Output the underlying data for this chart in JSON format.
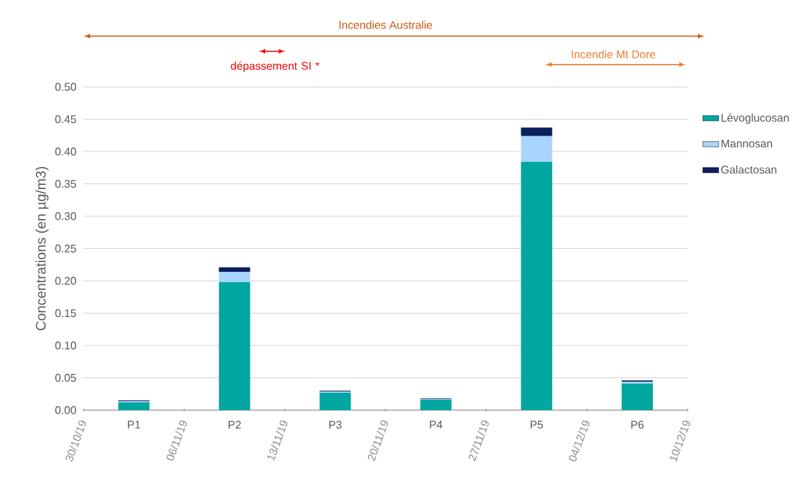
{
  "chart_data": {
    "type": "bar",
    "stacked": true,
    "ylabel": "Concentrations (en µg/m3)",
    "categories": [
      "P1",
      "P2",
      "P3",
      "P4",
      "P5",
      "P6"
    ],
    "series": [
      {
        "name": "Lévoglucosan",
        "color": "#00a6a0",
        "values": [
          0.012,
          0.198,
          0.027,
          0.016,
          0.384,
          0.041
        ]
      },
      {
        "name": "Mannosan",
        "color": "#aad4fb",
        "values": [
          0.002,
          0.016,
          0.002,
          0.001,
          0.04,
          0.003
        ]
      },
      {
        "name": "Galactosan",
        "color": "#0a1f5c",
        "values": [
          0.001,
          0.007,
          0.001,
          0.001,
          0.013,
          0.002
        ]
      }
    ],
    "ylim": [
      0,
      0.5
    ],
    "yticks": [
      {
        "value": 0,
        "label": "0.00"
      },
      {
        "value": 0.05,
        "label": "0.05"
      },
      {
        "value": 0.1,
        "label": "0.10"
      },
      {
        "value": 0.15,
        "label": "0.15"
      },
      {
        "value": 0.2,
        "label": "0.20"
      },
      {
        "value": 0.25,
        "label": "0.25"
      },
      {
        "value": 0.3,
        "label": "0.30"
      },
      {
        "value": 0.35,
        "label": "0.35"
      },
      {
        "value": 0.4,
        "label": "0.40"
      },
      {
        "value": 0.45,
        "label": "0.45"
      },
      {
        "value": 0.5,
        "label": "0.50"
      }
    ],
    "annotations": [
      "Incendies Australie",
      "dépassement SI *",
      "Incendie Mt Dore",
      "30/10/19",
      "06/11/19",
      "13/11/19",
      "20/11/19",
      "27/11/19",
      "04/12/19",
      "10/12/19"
    ],
    "grid": "y",
    "legend": "right"
  }
}
